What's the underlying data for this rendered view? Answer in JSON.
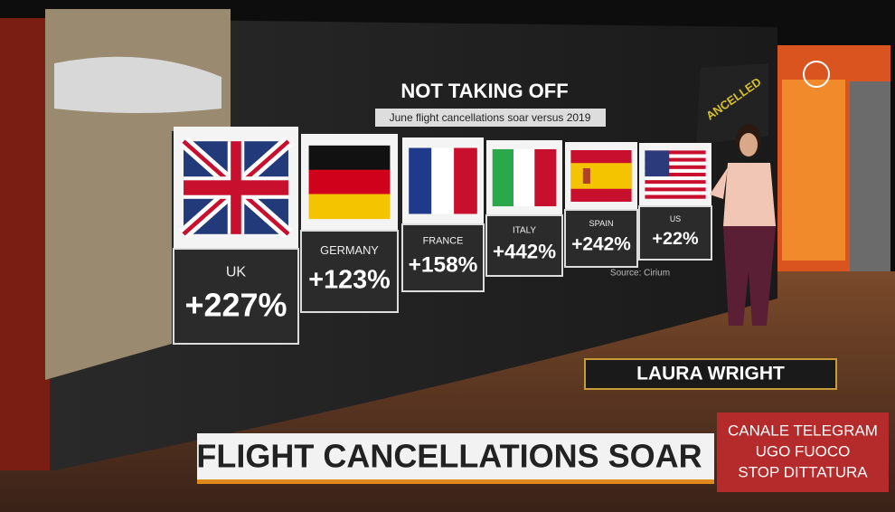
{
  "screen": {
    "title": "NOT TAKING OFF",
    "subtitle": "June flight cancellations soar versus 2019",
    "cards": [
      {
        "country": "UK",
        "change": "+227%"
      },
      {
        "country": "GERMANY",
        "change": "+123%"
      },
      {
        "country": "FRANCE",
        "change": "+158%"
      },
      {
        "country": "ITALY",
        "change": "+442%"
      },
      {
        "country": "SPAIN",
        "change": "+242%"
      },
      {
        "country": "US",
        "change": "+22%"
      }
    ],
    "source": "Source: Cirium",
    "side_label": "ANCELLED"
  },
  "presenter": "LAURA WRIGHT",
  "headline": "FLIGHT CANCELLATIONS SOAR",
  "overlay": [
    "CANALE TELEGRAM",
    "UGO FUOCO",
    "STOP DITTATURA"
  ]
}
